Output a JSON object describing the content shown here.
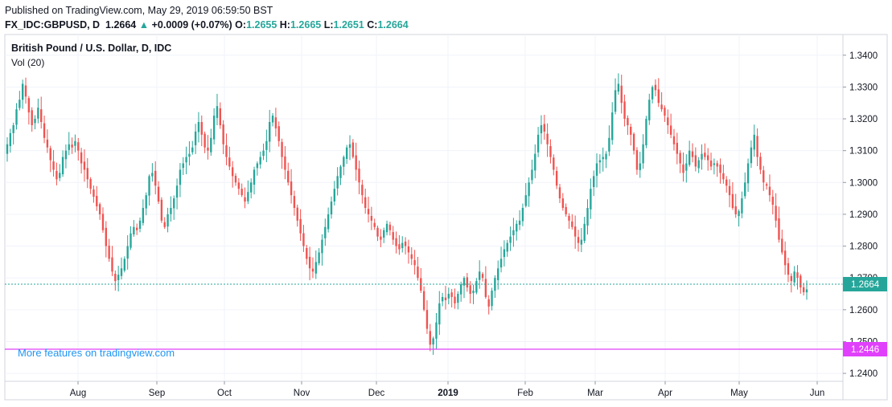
{
  "header": {
    "published": "Published on TradingView.com, May 29, 2019 06:59:50 BST",
    "symbol": "FX_IDC:GBPUSD, D",
    "last": "1.2664",
    "arrow": "▲",
    "change": "+0.0009 (+0.07%)",
    "o_label": "O:",
    "o_value": "1.2655",
    "h_label": "H:",
    "h_value": "1.2665",
    "l_label": "L:",
    "l_value": "1.2651",
    "c_label": "C:",
    "c_value": "1.2664"
  },
  "legend": {
    "title": "British Pound / U.S. Dollar, D, IDC",
    "volume": "Vol (20)"
  },
  "watermark": "More features on tradingview.com",
  "price_tags": {
    "last_price": "1.2664",
    "line_price": "1.2446"
  },
  "colors": {
    "up": "#26a69a",
    "down": "#ef5350",
    "grid": "#f0f3fa",
    "last_line": "#26a69a",
    "horizontal_line": "#e040fb",
    "watermark": "#2196f3"
  },
  "chart_data": {
    "type": "candlestick",
    "title": "British Pound / U.S. Dollar, D, IDC",
    "y_axis": {
      "ticks": [
        "1.2400",
        "1.2500",
        "1.2600",
        "1.2700",
        "1.2800",
        "1.2900",
        "1.3000",
        "1.3100",
        "1.3200",
        "1.3300",
        "1.3400"
      ],
      "range": [
        1.2375,
        1.3465
      ]
    },
    "x_axis": {
      "ticks": [
        {
          "label": "Aug",
          "month_index": 1
        },
        {
          "label": "Sep",
          "month_index": 2
        },
        {
          "label": "Oct",
          "month_index": 3
        },
        {
          "label": "Nov",
          "month_index": 4
        },
        {
          "label": "Dec",
          "month_index": 5
        },
        {
          "label": "2019",
          "month_index": 6,
          "bold": true
        },
        {
          "label": "Feb",
          "month_index": 7
        },
        {
          "label": "Mar",
          "month_index": 8
        },
        {
          "label": "Apr",
          "month_index": 9
        },
        {
          "label": "May",
          "month_index": 10
        },
        {
          "label": "Jun",
          "month_index": 11
        }
      ]
    },
    "last_price_line": 1.2664,
    "horizontal_line": 1.2446,
    "grid": true,
    "series_close": [
      1.312,
      1.3155,
      1.318,
      1.323,
      1.326,
      1.331,
      1.327,
      1.322,
      1.318,
      1.32,
      1.3235,
      1.319,
      1.314,
      1.311,
      1.307,
      1.304,
      1.301,
      1.303,
      1.308,
      1.31,
      1.312,
      1.311,
      1.313,
      1.31,
      1.306,
      1.304,
      1.301,
      1.298,
      1.2955,
      1.2925,
      1.29,
      1.285,
      1.28,
      1.276,
      1.272,
      1.269,
      1.271,
      1.273,
      1.276,
      1.28,
      1.284,
      1.286,
      1.285,
      1.288,
      1.292,
      1.296,
      1.302,
      1.303,
      1.299,
      1.294,
      1.288,
      1.286,
      1.29,
      1.292,
      1.295,
      1.299,
      1.304,
      1.306,
      1.308,
      1.309,
      1.311,
      1.316,
      1.319,
      1.315,
      1.311,
      1.31,
      1.314,
      1.321,
      1.324,
      1.318,
      1.312,
      1.308,
      1.305,
      1.302,
      1.3,
      1.298,
      1.296,
      1.294,
      1.297,
      1.3,
      1.304,
      1.306,
      1.308,
      1.31,
      1.313,
      1.319,
      1.321,
      1.317,
      1.313,
      1.308,
      1.304,
      1.3,
      1.296,
      1.292,
      1.288,
      1.284,
      1.28,
      1.276,
      1.273,
      1.272,
      1.275,
      1.278,
      1.282,
      1.286,
      1.29,
      1.294,
      1.298,
      1.302,
      1.305,
      1.308,
      1.311,
      1.312,
      1.308,
      1.304,
      1.3,
      1.296,
      1.292,
      1.29,
      1.288,
      1.286,
      1.283,
      1.282,
      1.285,
      1.287,
      1.285,
      1.282,
      1.28,
      1.279,
      1.281,
      1.28,
      1.278,
      1.276,
      1.274,
      1.27,
      1.266,
      1.26,
      1.254,
      1.249,
      1.251,
      1.256,
      1.262,
      1.264,
      1.263,
      1.265,
      1.264,
      1.262,
      1.265,
      1.268,
      1.27,
      1.267,
      1.265,
      1.266,
      1.269,
      1.272,
      1.27,
      1.264,
      1.261,
      1.266,
      1.27,
      1.273,
      1.276,
      1.279,
      1.281,
      1.283,
      1.285,
      1.287,
      1.288,
      1.292,
      1.296,
      1.3,
      1.304,
      1.309,
      1.315,
      1.318,
      1.316,
      1.312,
      1.308,
      1.304,
      1.299,
      1.295,
      1.292,
      1.29,
      1.288,
      1.286,
      1.283,
      1.281,
      1.282,
      1.287,
      1.292,
      1.298,
      1.302,
      1.306,
      1.307,
      1.308,
      1.309,
      1.314,
      1.322,
      1.329,
      1.331,
      1.325,
      1.32,
      1.318,
      1.315,
      1.31,
      1.304,
      1.306,
      1.312,
      1.32,
      1.326,
      1.33,
      1.329,
      1.325,
      1.323,
      1.321,
      1.318,
      1.315,
      1.312,
      1.309,
      1.306,
      1.303,
      1.306,
      1.31,
      1.308,
      1.305,
      1.307,
      1.309,
      1.308,
      1.307,
      1.305,
      1.306,
      1.305,
      1.303,
      1.301,
      1.299,
      1.296,
      1.292,
      1.29,
      1.291,
      1.295,
      1.3,
      1.306,
      1.311,
      1.315,
      1.308,
      1.304,
      1.3,
      1.299,
      1.296,
      1.293,
      1.288,
      1.282,
      1.278,
      1.274,
      1.271,
      1.269,
      1.272,
      1.27,
      1.267,
      1.2655,
      1.2664
    ]
  }
}
